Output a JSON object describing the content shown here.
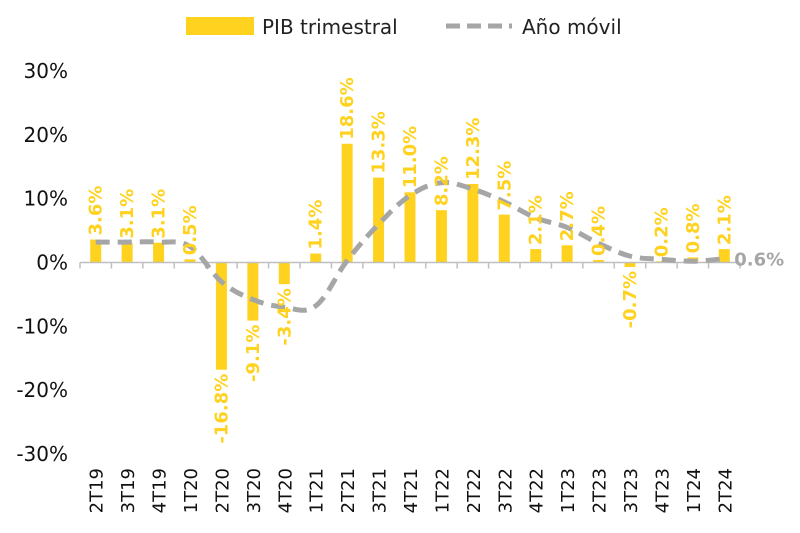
{
  "chart_data": {
    "type": "bar",
    "categories": [
      "2T19",
      "3T19",
      "4T19",
      "1T20",
      "2T20",
      "3T20",
      "4T20",
      "1T21",
      "2T21",
      "3T21",
      "4T21",
      "1T22",
      "2T22",
      "3T22",
      "4T22",
      "1T23",
      "2T23",
      "3T23",
      "4T23",
      "1T24",
      "2T24"
    ],
    "series": [
      {
        "name": "PIB trimestral",
        "type": "bar",
        "color": "#FFD21F",
        "values": [
          3.6,
          3.1,
          3.1,
          0.5,
          -16.8,
          -9.1,
          -3.4,
          1.4,
          18.6,
          13.3,
          11.0,
          8.2,
          12.3,
          7.5,
          2.1,
          2.7,
          0.4,
          -0.7,
          0.2,
          0.8,
          2.1
        ],
        "labels": [
          "3.6%",
          "3.1%",
          "3.1%",
          "0.5%",
          "-16.8%",
          "-9.1%",
          "-3.4%",
          "1.4%",
          "18.6%",
          "13.3%",
          "11.0%",
          "8.2%",
          "12.3%",
          "7.5%",
          "2.1%",
          "2.7%",
          "0.4%",
          "-0.7%",
          "0.2%",
          "0.8%",
          "2.1%"
        ]
      },
      {
        "name": "Año móvil",
        "type": "line",
        "style": "dashed",
        "color": "#A6A6A6",
        "values": [
          3.2,
          3.2,
          3.2,
          2.5,
          -3.0,
          -5.8,
          -7.0,
          -6.8,
          0.3,
          6.0,
          10.5,
          12.5,
          11.5,
          9.5,
          7.0,
          5.5,
          3.0,
          1.0,
          0.5,
          0.2,
          0.6
        ],
        "end_label": "0.6%"
      }
    ],
    "y_ticks": [
      "30%",
      "20%",
      "10%",
      "0%",
      "-10%",
      "-20%",
      "-30%"
    ],
    "ylim": [
      -30,
      30
    ],
    "legend_position": "top",
    "grid": false
  }
}
